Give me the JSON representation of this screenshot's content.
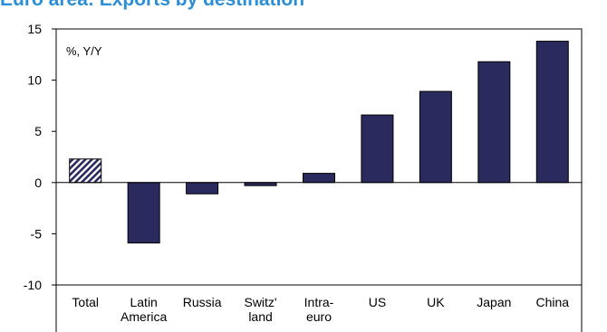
{
  "title": "Euro area: Exports by destination",
  "colors": {
    "bar": "#2b2a5e",
    "title": "#2c8fd6",
    "hatch": "#2b2a5e"
  },
  "chart_data": {
    "type": "bar",
    "title": "Euro area: Exports by destination",
    "unit_label": "%, Y/Y",
    "xlabel": "",
    "ylabel": "",
    "ylim": [
      -10,
      15
    ],
    "yticks": [
      -10,
      -5,
      0,
      5,
      10,
      15
    ],
    "categories": [
      [
        "Total"
      ],
      [
        "Latin",
        "America"
      ],
      [
        "Russia"
      ],
      [
        "Switz'",
        "land"
      ],
      [
        "Intra-",
        "euro"
      ],
      [
        "US"
      ],
      [
        "UK"
      ],
      [
        "Japan"
      ],
      [
        "China"
      ]
    ],
    "values": [
      2.3,
      -5.9,
      -1.1,
      -0.3,
      0.9,
      6.6,
      8.9,
      11.8,
      13.8
    ],
    "highlight": [
      0
    ],
    "grid": false,
    "legend": "none"
  }
}
